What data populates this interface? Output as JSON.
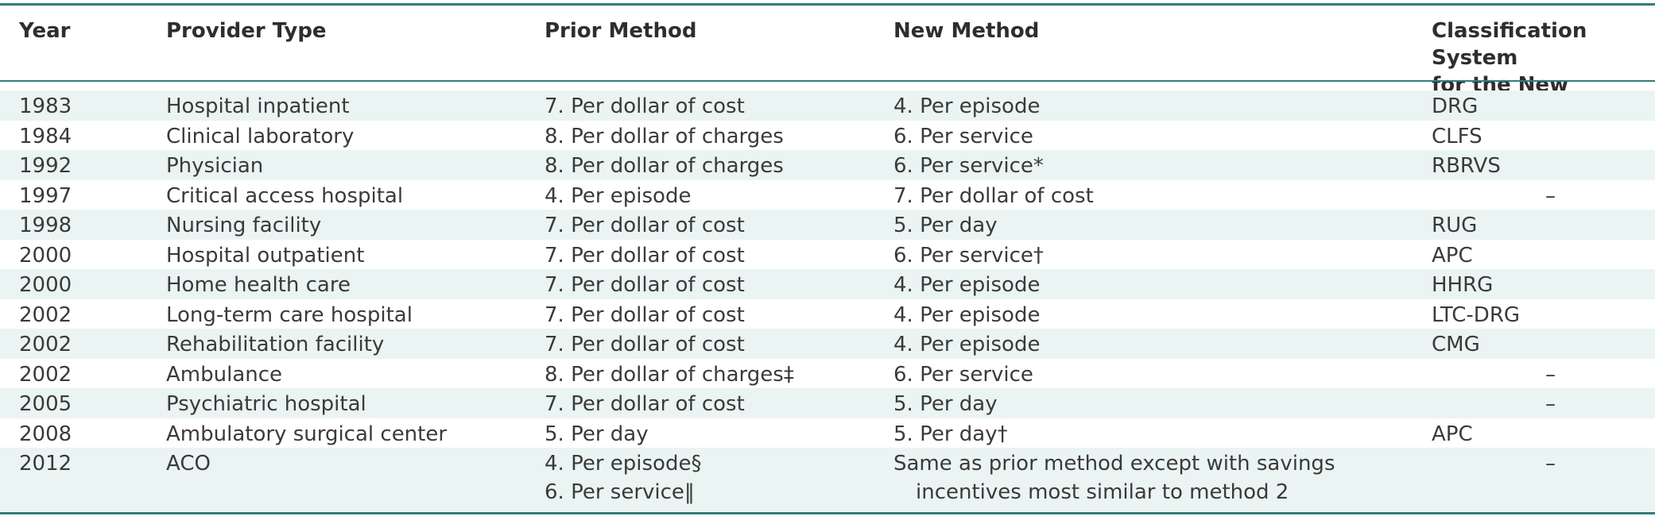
{
  "headers": {
    "year": "Year",
    "provider": "Provider Type",
    "prior": "Prior Method",
    "new": "New Method",
    "classification": "Classification System\nfor the New Method"
  },
  "rows": [
    {
      "year": "1983",
      "provider": "Hospital inpatient",
      "prior": "7. Per dollar of cost",
      "new": "4. Per episode",
      "cls": "DRG"
    },
    {
      "year": "1984",
      "provider": "Clinical laboratory",
      "prior": "8. Per dollar of charges",
      "new": "6. Per service",
      "cls": "CLFS"
    },
    {
      "year": "1992",
      "provider": "Physician",
      "prior": "8. Per dollar of charges",
      "new": "6. Per service*",
      "cls": "RBRVS"
    },
    {
      "year": "1997",
      "provider": "Critical access hospital",
      "prior": "4. Per episode",
      "new": "7. Per dollar of cost",
      "cls": "–"
    },
    {
      "year": "1998",
      "provider": "Nursing facility",
      "prior": "7. Per dollar of cost",
      "new": "5. Per day",
      "cls": "RUG"
    },
    {
      "year": "2000",
      "provider": "Hospital outpatient",
      "prior": "7. Per dollar of cost",
      "new": "6. Per service†",
      "cls": "APC"
    },
    {
      "year": "2000",
      "provider": "Home health care",
      "prior": "7. Per dollar of cost",
      "new": "4. Per episode",
      "cls": "HHRG"
    },
    {
      "year": "2002",
      "provider": "Long-term care hospital",
      "prior": "7. Per dollar of cost",
      "new": "4. Per episode",
      "cls": "LTC-DRG"
    },
    {
      "year": "2002",
      "provider": "Rehabilitation facility",
      "prior": "7. Per dollar of cost",
      "new": "4. Per episode",
      "cls": "CMG"
    },
    {
      "year": "2002",
      "provider": "Ambulance",
      "prior": "8. Per dollar of charges‡",
      "new": "6. Per service",
      "cls": "–"
    },
    {
      "year": "2005",
      "provider": "Psychiatric hospital",
      "prior": "7. Per dollar of cost",
      "new": "5. Per day",
      "cls": "–"
    },
    {
      "year": "2008",
      "provider": "Ambulatory surgical center",
      "prior": "5. Per day",
      "new": "5. Per day†",
      "cls": "APC"
    },
    {
      "year": "2012",
      "provider": "ACO",
      "prior": "4. Per episode§",
      "prior2": "6. Per service‖",
      "new": "Same as prior method except with savings",
      "new2": "incentives most similar to method 2",
      "cls": "–"
    }
  ]
}
